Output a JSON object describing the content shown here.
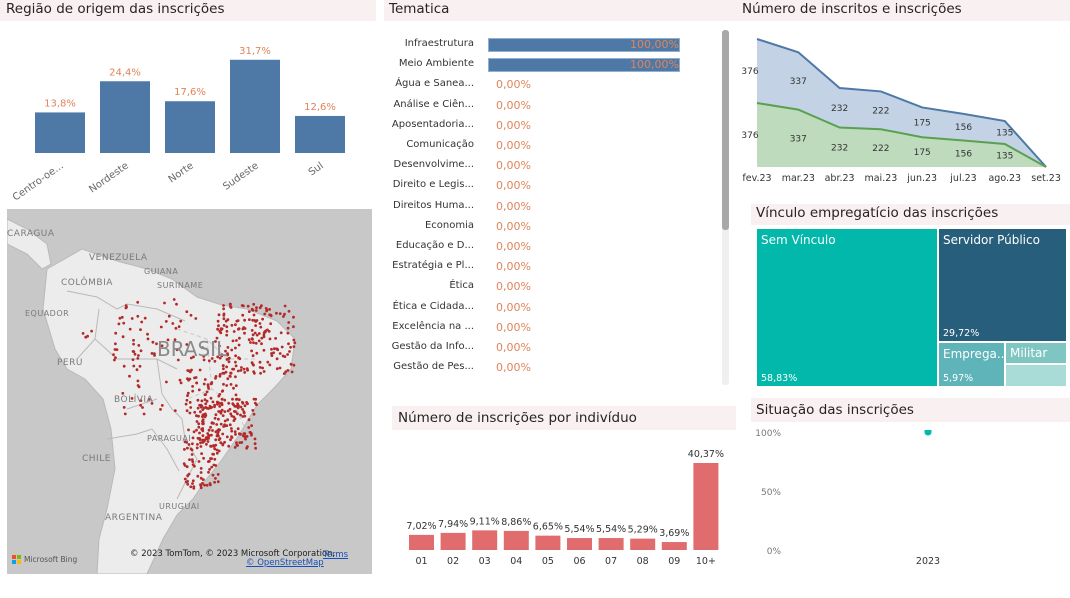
{
  "regiao": {
    "title": "Região de origem das inscrições",
    "chart_data": {
      "type": "bar",
      "title": "Região de origem das inscrições",
      "categories": [
        "Centro-oe...",
        "Nordeste",
        "Norte",
        "Sudeste",
        "Sul"
      ],
      "values": [
        13.8,
        24.4,
        17.6,
        31.7,
        12.6
      ],
      "labels": [
        "13,8%",
        "24,4%",
        "17,6%",
        "31,7%",
        "12,6%"
      ],
      "xlabel": "",
      "ylabel": "",
      "ylim": [
        0,
        35
      ],
      "bar_color": "#4e79a7",
      "label_color": "#e0845a"
    }
  },
  "map": {
    "labels": {
      "nicaragua": "CARAGUA",
      "venezuela": "VENEZUELA",
      "guiana": "GUIANA",
      "suriname": "SURINAME",
      "colombia": "COLÔMBIA",
      "equador": "EQUADOR",
      "peru": "PERU",
      "brasil": "BRASIL",
      "bolivia": "BOLÍVIA",
      "paraguai": "PARAGUAI",
      "chile": "CHILE",
      "uruguai": "URUGUAI",
      "argentina": "ARGENTINA"
    },
    "bing_label": "Microsoft Bing",
    "attribution": "© 2023 TomTom, © 2023 Microsoft Corporation,",
    "terms_link": "Terms",
    "osm_link": "© OpenStreetMap",
    "point_color": "#b22a2a"
  },
  "tematica": {
    "title": "Tematica",
    "chart_data": {
      "type": "bar",
      "orientation": "horizontal",
      "categories": [
        "Infraestrutura",
        "Meio Ambiente",
        "Água e Sanea...",
        "Análise e Ciên...",
        "Aposentadoria...",
        "Comunicação",
        "Desenvolvime...",
        "Direito e Legis...",
        "Direitos Huma...",
        "Economia",
        "Educação e D...",
        "Estratégia e Pl...",
        "Ética",
        "Ética e Cidada...",
        "Excelência na ...",
        "Gestão da Info...",
        "Gestão de Pes..."
      ],
      "values": [
        100,
        100,
        0,
        0,
        0,
        0,
        0,
        0,
        0,
        0,
        0,
        0,
        0,
        0,
        0,
        0,
        0
      ],
      "labels": [
        "100,00%",
        "100,00%",
        "0,00%",
        "0,00%",
        "0,00%",
        "0,00%",
        "0,00%",
        "0,00%",
        "0,00%",
        "0,00%",
        "0,00%",
        "0,00%",
        "0,00%",
        "0,00%",
        "0,00%",
        "0,00%",
        "0,00%"
      ],
      "xlim": [
        0,
        100
      ]
    },
    "scroll_position": 0.0
  },
  "inscritos": {
    "title": "Número de inscritos e inscrições",
    "chart_data": {
      "type": "area",
      "title": "Número de inscritos e inscrições",
      "x": [
        "fev.23",
        "mar.23",
        "abr.23",
        "mai.23",
        "jun.23",
        "jul.23",
        "ago.23",
        "set.23"
      ],
      "series": [
        {
          "name": "inscrições",
          "values": [
            376,
            337,
            232,
            222,
            175,
            156,
            135,
            0
          ],
          "color": "#4e79a7",
          "fill": "#c3d2e4"
        },
        {
          "name": "inscritos",
          "values": [
            376,
            337,
            232,
            222,
            175,
            156,
            135,
            0
          ],
          "color": "#59a14f",
          "fill": "#bedbbd"
        }
      ],
      "stacked": true,
      "labels_top": [
        "376",
        "337",
        "232",
        "222",
        "175",
        "156",
        "135",
        ""
      ],
      "labels_bottom": [
        "376",
        "337",
        "232",
        "222",
        "175",
        "156",
        "135",
        ""
      ]
    }
  },
  "vinculo": {
    "title": "Vínculo empregatício das inscrições",
    "chart_data": {
      "type": "treemap",
      "categories": [
        "Sem Vínculo",
        "Servidor Público",
        "Emprega...",
        "Militar",
        ""
      ],
      "values": [
        58.83,
        29.72,
        5.97,
        3.5,
        1.98
      ],
      "labels": [
        "58,83%",
        "29,72%",
        "5,97%",
        "",
        ""
      ],
      "colors": [
        "#01b8aa",
        "#265e7b",
        "#5fb4b9",
        "#7fc6c2",
        "#a9dcd7"
      ]
    }
  },
  "individuo": {
    "title": "Número de inscrições por indivíduo",
    "chart_data": {
      "type": "bar",
      "title": "Número de inscrições por indivíduo",
      "categories": [
        "01",
        "02",
        "03",
        "04",
        "05",
        "06",
        "07",
        "08",
        "09",
        "10+"
      ],
      "values": [
        7.02,
        7.94,
        9.11,
        8.86,
        6.65,
        5.54,
        5.54,
        5.29,
        3.69,
        40.37
      ],
      "labels": [
        "7,02%",
        "7,94%",
        "9,11%",
        "8,86%",
        "6,65%",
        "5,54%",
        "5,54%",
        "5,29%",
        "3,69%",
        "40,37%"
      ],
      "ylim": [
        0,
        42
      ],
      "bar_color": "#e06c6e"
    }
  },
  "situacao": {
    "title": "Situação das inscrições",
    "chart_data": {
      "type": "scatter",
      "title": "Situação das inscrições",
      "x": [
        "2023"
      ],
      "y": [
        100
      ],
      "yticks": [
        "100%",
        "50%",
        "0%"
      ],
      "ylim": [
        0,
        100
      ],
      "point_color": "#01b8aa"
    }
  }
}
